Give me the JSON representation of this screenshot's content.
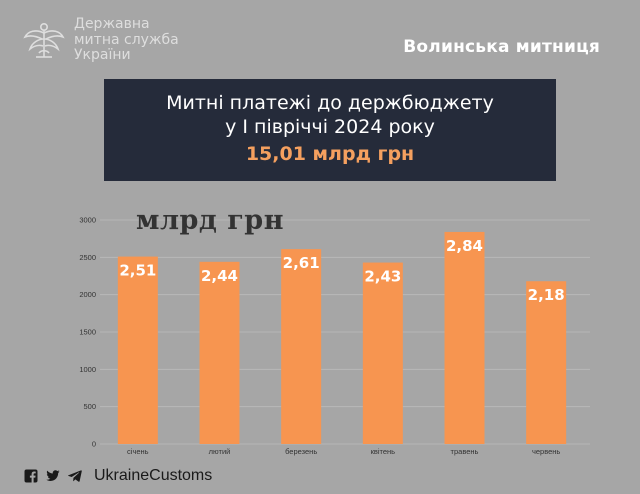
{
  "logo": {
    "line1": "Державна",
    "line2": "митна служба",
    "line3": "України",
    "icon": "customs-emblem-icon"
  },
  "org_name": "Волинська митниця",
  "title": {
    "line1": "Митні платежі до  держбюджету",
    "line2": "у  І півріччі 2024 року",
    "total": "15,01 млрд грн"
  },
  "colors": {
    "background": "#a6a6a6",
    "title_box": "#252b3a",
    "bar": "#f79550",
    "accent_text": "#f5a05f"
  },
  "chart_data": {
    "type": "bar",
    "unit_label": "млрд грн",
    "categories": [
      "січень",
      "лютий",
      "березень",
      "квітень",
      "травень",
      "червень"
    ],
    "values": [
      2510,
      2440,
      2610,
      2430,
      2840,
      2180
    ],
    "data_labels": [
      "2,51",
      "2,44",
      "2,61",
      "2,43",
      "2,84",
      "2,18"
    ],
    "yticks": [
      0,
      500,
      1000,
      1500,
      2000,
      2500,
      3000
    ],
    "ylim": [
      0,
      3000
    ],
    "grid": true
  },
  "footer": {
    "icons": [
      "facebook-icon",
      "twitter-icon",
      "telegram-icon"
    ],
    "handle": "UkraineCustoms"
  }
}
